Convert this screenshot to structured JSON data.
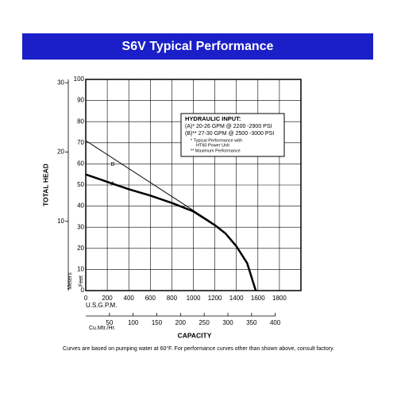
{
  "chart_data": {
    "type": "line",
    "title": "S6V Typical Performance",
    "xlabel": "CAPACITY",
    "xunit": "U.S.G.P.M.",
    "x2unit": "Cu.Mtr./Hr.",
    "ylabel": "TOTAL HEAD",
    "yunit": "Feet",
    "y2unit": "Meters",
    "xlim": [
      0,
      2000
    ],
    "xticks": [
      0,
      200,
      400,
      600,
      800,
      1000,
      1200,
      1400,
      1600,
      1800
    ],
    "x2lim": [
      0,
      454.2
    ],
    "x2ticks": [
      50,
      100,
      150,
      200,
      250,
      300,
      350,
      400
    ],
    "ylim": [
      0,
      100
    ],
    "yticks": [
      0,
      10,
      20,
      30,
      40,
      50,
      60,
      70,
      80,
      90,
      100
    ],
    "y2lim": [
      0,
      30.48
    ],
    "y2ticks": [
      10,
      20,
      30
    ],
    "grid": true,
    "series": [
      {
        "name": "A",
        "color": "#000000",
        "line_width": 2.5,
        "x": [
          0,
          200,
          400,
          600,
          800,
          1000,
          1200,
          1300,
          1400,
          1500,
          1580
        ],
        "values": [
          55,
          51.5,
          48,
          45,
          41.5,
          37.5,
          31,
          27,
          21,
          13,
          0
        ]
      },
      {
        "name": "B",
        "color": "#000000",
        "line_width": 1,
        "x": [
          0,
          1150
        ],
        "values": [
          71,
          33
        ]
      }
    ],
    "annotations": [
      "HYDRAULIC INPUT:",
      "(A)* 20-26 GPM @ 2200 -2900 PSI",
      "(B)** 27-30 GPM @ 2500 -3000 PSI",
      "*  Typical Performance with",
      "HT60 Power Unit",
      "** Maximum Performance"
    ],
    "footnote": "Curves are based on pumping water at 60°F. For performance curves other than shown above, consult factory."
  }
}
